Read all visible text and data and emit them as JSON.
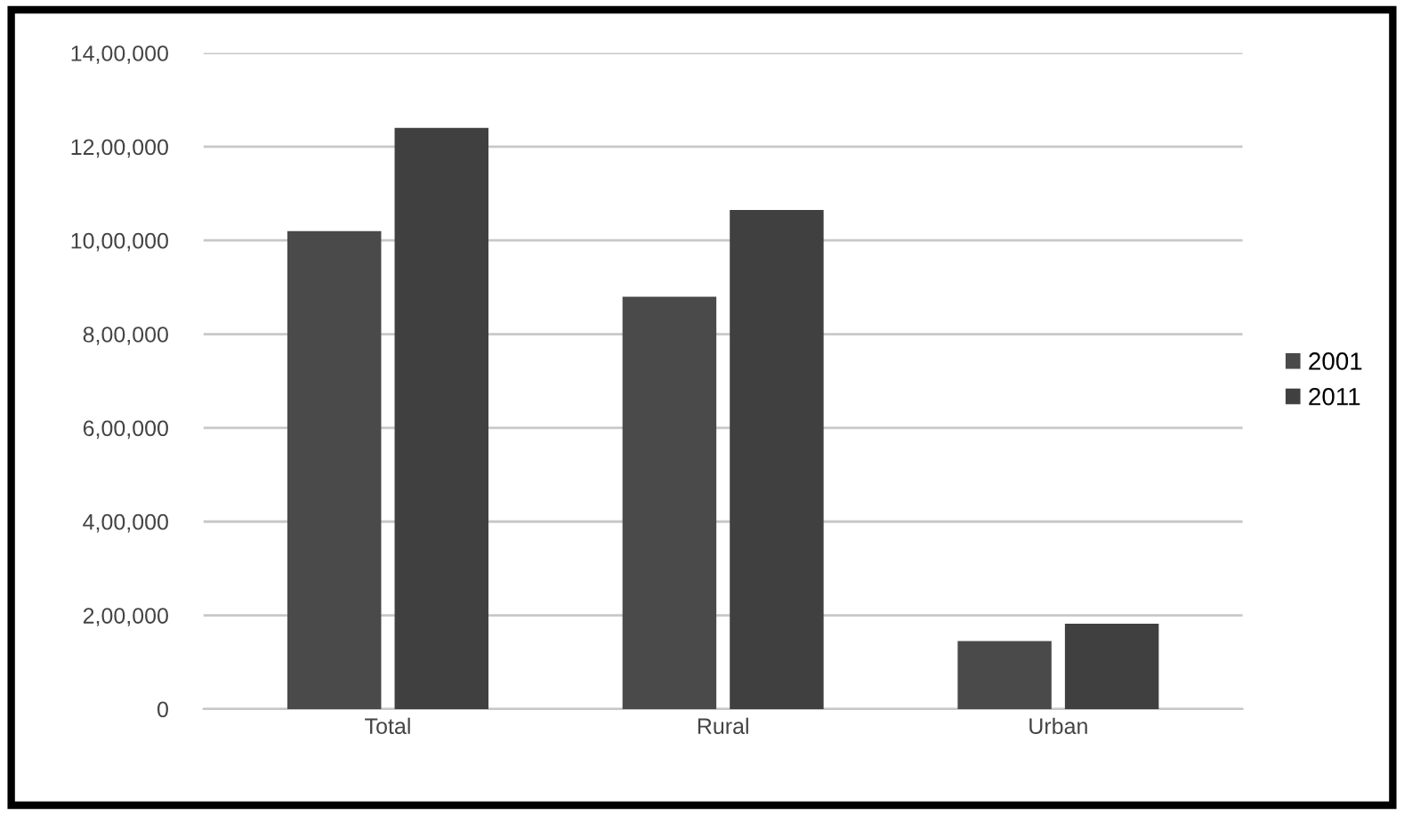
{
  "chart_data": {
    "type": "bar",
    "categories": [
      "Total",
      "Rural",
      "Urban"
    ],
    "series": [
      {
        "name": "2001",
        "color": "#4a4a4a",
        "values": [
          1020000,
          880000,
          145000
        ]
      },
      {
        "name": "2011",
        "color": "#404040",
        "values": [
          1240000,
          1065000,
          182000
        ]
      }
    ],
    "ylim": [
      0,
      1400000
    ],
    "yticks": [
      0,
      {
        "value": 200000,
        "label": "2,00,000"
      },
      {
        "value": 400000,
        "label": "4,00,000"
      },
      {
        "value": 600000,
        "label": "6,00,000"
      },
      {
        "value": 800000,
        "label": "8,00,000"
      },
      {
        "value": 1000000,
        "label": "10,00,000"
      },
      {
        "value": 1200000,
        "label": "12,00,000"
      },
      {
        "value": 1400000,
        "label": "14,00,000"
      }
    ],
    "grid": "y",
    "legend": "right"
  }
}
